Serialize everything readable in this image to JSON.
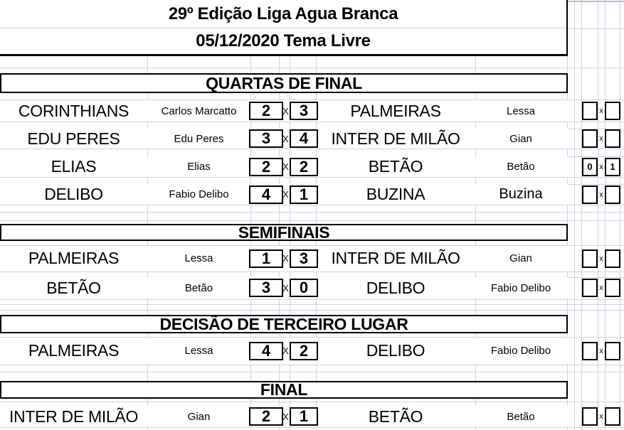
{
  "header": {
    "line1": "29º  Edição Liga Agua Branca",
    "line2": "05/12/2020 Tema Livre"
  },
  "sections": [
    {
      "title": "QUARTAS DE FINAL",
      "matches": [
        {
          "team1": "CORINTHIANS",
          "player1": "Carlos Marcatto",
          "score1": "2",
          "sep": "X",
          "score2": "3",
          "team2": "PALMEIRAS",
          "player2": "Lessa",
          "pen1": "",
          "pen_sep": "x",
          "pen2": ""
        },
        {
          "team1": "EDU PERES",
          "player1": "Edu Peres",
          "score1": "3",
          "sep": "X",
          "score2": "4",
          "team2": "INTER DE MILÃO",
          "player2": "Gian",
          "pen1": "",
          "pen_sep": "x",
          "pen2": ""
        },
        {
          "team1": "ELIAS",
          "player1": "Elias",
          "score1": "2",
          "sep": "X",
          "score2": "2",
          "team2": "BETÃO",
          "player2": "Betão",
          "pen1": "0",
          "pen_sep": "x",
          "pen2": "1"
        },
        {
          "team1": "DELIBO",
          "player1": "Fabio Delibo",
          "score1": "4",
          "sep": "X",
          "score2": "1",
          "team2": "BUZINA",
          "player2": "Buzina",
          "pen1": "",
          "pen_sep": "x",
          "pen2": ""
        }
      ]
    },
    {
      "title": "SEMIFINAIS",
      "matches": [
        {
          "team1": "PALMEIRAS",
          "player1": "Lessa",
          "score1": "1",
          "sep": "X",
          "score2": "3",
          "team2": "INTER DE MILÃO",
          "player2": "Gian",
          "pen1": "",
          "pen_sep": "x",
          "pen2": ""
        },
        {
          "team1": "BETÃO",
          "player1": "Betão",
          "score1": "3",
          "sep": "X",
          "score2": "0",
          "team2": "DELIBO",
          "player2": "Fabio Delibo",
          "pen1": "",
          "pen_sep": "x",
          "pen2": ""
        }
      ]
    },
    {
      "title": "DECISÃO DE TERCEIRO LUGAR",
      "matches": [
        {
          "team1": "PALMEIRAS",
          "player1": "Lessa",
          "score1": "4",
          "sep": "X",
          "score2": "2",
          "team2": "DELIBO",
          "player2": "Fabio Delibo",
          "pen1": "",
          "pen_sep": "x",
          "pen2": ""
        }
      ]
    },
    {
      "title": "FINAL",
      "matches": [
        {
          "team1": "INTER DE MILÃO",
          "player1": "Gian",
          "score1": "2",
          "sep": "X",
          "score2": "1",
          "team2": "BETÃO",
          "player2": "Betão",
          "pen1": "",
          "pen_sep": "x",
          "pen2": ""
        }
      ]
    }
  ],
  "colors": {
    "gridline": "#ccd3e0",
    "gridline_top": "#a9c0d8",
    "border": "#000000",
    "background": "#ffffff"
  }
}
